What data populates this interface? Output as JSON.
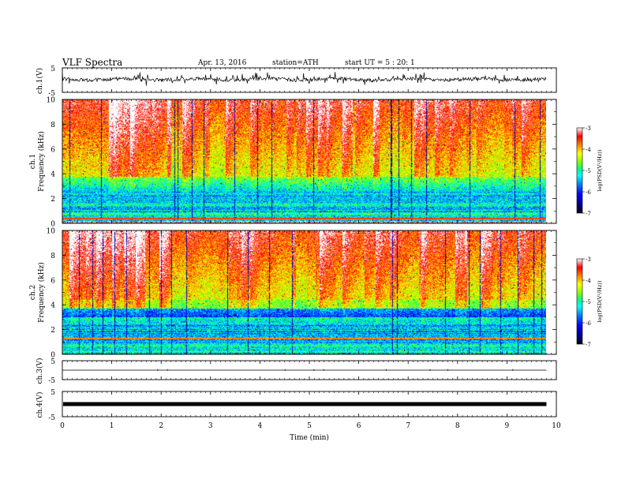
{
  "header": {
    "title": "VLF Spectra",
    "date": "Apr. 13, 2016",
    "station": "station=ATH",
    "start_ut": "start UT = 5 : 20: 1"
  },
  "chart_data": {
    "type": "heatmap",
    "xlabel": "Time (min)",
    "xlim": [
      0,
      10
    ],
    "x_ticks": [
      "0",
      "1",
      "2",
      "3",
      "4",
      "5",
      "6",
      "7",
      "8",
      "9",
      "10"
    ],
    "data_end_min": 9.8,
    "panels": [
      {
        "id": "ch1-waveform",
        "ylabel": "ch.1(V)",
        "ylim": [
          -5,
          5
        ],
        "y_ticks": [
          "5",
          "-5"
        ],
        "baseline_v": 0.3,
        "amplitude_v": 1.2
      },
      {
        "id": "ch1-spectrogram",
        "ylabel_top": "ch.1",
        "ylabel": "Frequency (kHz)",
        "ylim": [
          0,
          10
        ],
        "y_ticks": [
          "0",
          "2",
          "4",
          "6",
          "8",
          "10"
        ],
        "colorbar": {
          "label": "log(PSD(V²/Hz))",
          "range": [
            -7,
            -3
          ],
          "ticks": [
            "-3",
            "-4",
            "-5",
            "-6",
            "-7"
          ]
        }
      },
      {
        "id": "ch2-spectrogram",
        "ylabel_top": "ch.2",
        "ylabel": "Frequency (kHz)",
        "ylim": [
          0,
          10
        ],
        "y_ticks": [
          "0",
          "2",
          "4",
          "6",
          "8",
          "10"
        ],
        "colorbar": {
          "label": "log(PSD(V²/Hz))",
          "range": [
            -7,
            -3
          ],
          "ticks": [
            "-3",
            "-4",
            "-5",
            "-6",
            "-7"
          ]
        }
      },
      {
        "id": "ch3-waveform",
        "ylabel": "ch.3(V)",
        "ylim": [
          -5,
          5
        ],
        "y_ticks": [
          "5",
          "-5"
        ],
        "baseline_v": 0
      },
      {
        "id": "ch4-waveform",
        "ylabel": "ch.4(V)",
        "ylim": [
          -5,
          5
        ],
        "y_ticks": [
          "5",
          "-5"
        ],
        "baseline_v": 0
      }
    ]
  },
  "colors": {
    "colormap": [
      "#000000",
      "#00007f",
      "#0000ff",
      "#0080ff",
      "#00ffff",
      "#00ff80",
      "#80ff00",
      "#ffff00",
      "#ff8000",
      "#ff0000",
      "#ffffff"
    ],
    "axis": "#000000"
  }
}
